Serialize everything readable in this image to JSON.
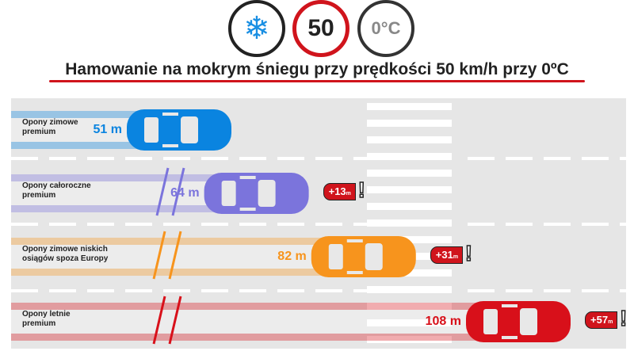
{
  "header": {
    "icons": [
      "snowflake-icon",
      "speed-limit-sign",
      "temperature-sign"
    ],
    "speed_sign": "50",
    "temperature_sign": "0°C",
    "title": "Hamowanie na mokrym śniegu przy prędkości 50 km/h przy 0ºC"
  },
  "colors": {
    "accent": "#d0141c",
    "road": "#e6e6e6"
  },
  "chart_data": {
    "type": "bar",
    "unit": "m",
    "categories": [
      "Opony zimowe premium",
      "Opony całoroczne premium",
      "Opony zimowe niskich osiągów spoza Europy",
      "Opony letnie premium"
    ],
    "values": [
      51,
      64,
      82,
      108
    ],
    "value_labels": [
      "51 m",
      "64 m",
      "82 m",
      "108 m"
    ],
    "differences": [
      null,
      "+13",
      "+31",
      "+57"
    ],
    "colors": [
      "#0a84e0",
      "#7b74dc",
      "#f7941d",
      "#d8101a"
    ]
  },
  "lanes": [
    {
      "label_line1": "Opony zimowe",
      "label_line2": "premium",
      "distance": "51 m",
      "diff": null
    },
    {
      "label_line1": "Opony całoroczne",
      "label_line2": "premium",
      "distance": "64 m",
      "diff": "+13",
      "diff_unit": "m"
    },
    {
      "label_line1": "Opony zimowe niskich",
      "label_line2": "osiągów spoza Europy",
      "distance": "82 m",
      "diff": "+31",
      "diff_unit": "m"
    },
    {
      "label_line1": "Opony letnie",
      "label_line2": "premium",
      "distance": "108 m",
      "diff": "+57",
      "diff_unit": "m"
    }
  ]
}
